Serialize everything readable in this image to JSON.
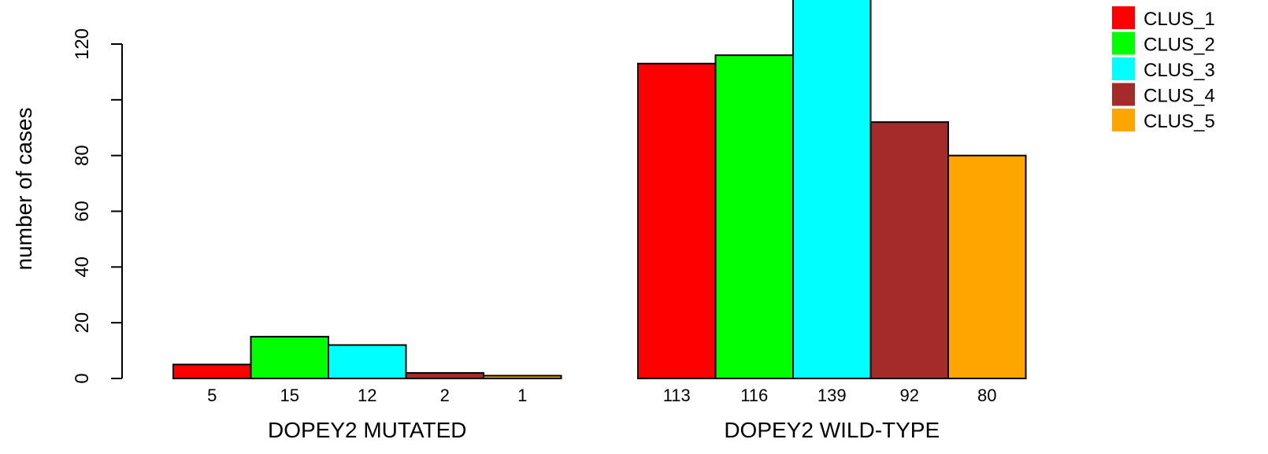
{
  "chart_data": {
    "type": "bar",
    "ylabel": "number of cases",
    "ylim": [
      0,
      139
    ],
    "y_ticks": [
      0,
      20,
      40,
      60,
      80,
      120
    ],
    "groups": [
      {
        "label": "DOPEY2 MUTATED",
        "values": [
          5,
          15,
          12,
          2,
          1
        ]
      },
      {
        "label": "DOPEY2 WILD-TYPE",
        "values": [
          113,
          116,
          139,
          92,
          80
        ]
      }
    ],
    "series": [
      {
        "name": "CLUS_1",
        "color": "#ff0000"
      },
      {
        "name": "CLUS_2",
        "color": "#00ff00"
      },
      {
        "name": "CLUS_3",
        "color": "#00ffff"
      },
      {
        "name": "CLUS_4",
        "color": "#a52a2a"
      },
      {
        "name": "CLUS_5",
        "color": "#ffa500"
      }
    ],
    "bar_value_labels": true,
    "legend_position": "top-right",
    "grid": false
  }
}
